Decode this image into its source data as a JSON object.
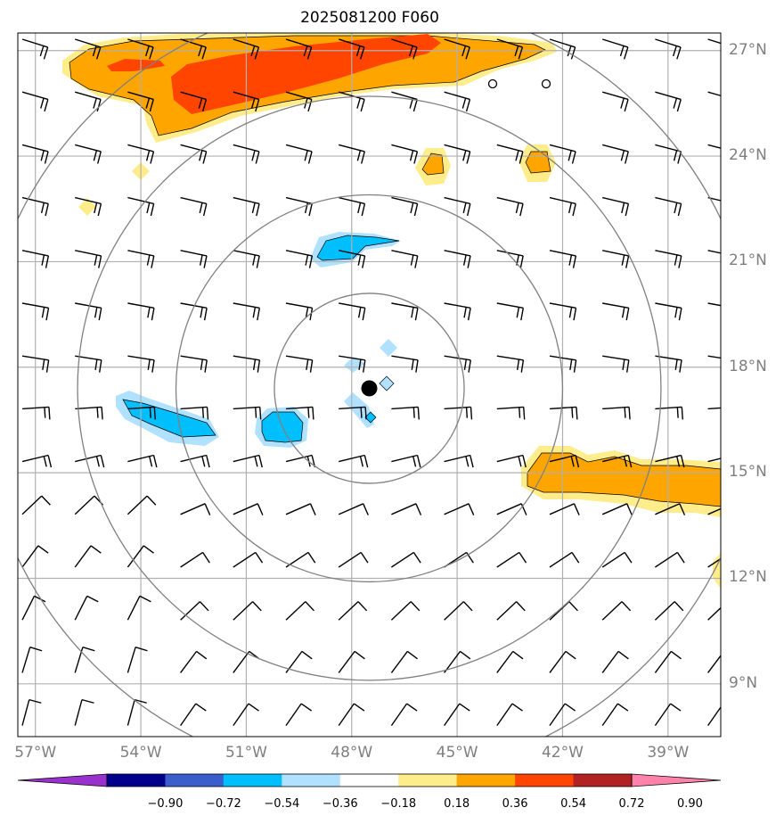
{
  "title": "2025081200 F060",
  "map": {
    "lon_range": [
      -57.5,
      -37.5
    ],
    "lat_range": [
      7.5,
      27.5
    ],
    "lon_ticks": [
      {
        "value": -57,
        "label": "57°W"
      },
      {
        "value": -54,
        "label": "54°W"
      },
      {
        "value": -51,
        "label": "51°W"
      },
      {
        "value": -48,
        "label": "48°W"
      },
      {
        "value": -45,
        "label": "45°W"
      },
      {
        "value": -42,
        "label": "42°W"
      },
      {
        "value": -39,
        "label": "39°W"
      }
    ],
    "lat_ticks": [
      {
        "value": 27,
        "label": "27°N"
      },
      {
        "value": 24,
        "label": "24°N"
      },
      {
        "value": 21,
        "label": "21°N"
      },
      {
        "value": 18,
        "label": "18°N"
      },
      {
        "value": 15,
        "label": "15°N"
      },
      {
        "value": 12,
        "label": "12°N"
      },
      {
        "value": 9,
        "label": "9°N"
      }
    ],
    "center": {
      "lon": -47.5,
      "lat": 17.4
    },
    "range_rings_deg": [
      2.7,
      5.5,
      8.3,
      11.1
    ],
    "grid_color": "#b0b0b0",
    "ring_color": "#808080"
  },
  "colorbar": {
    "levels": [
      "−0.90",
      "−0.72",
      "−0.54",
      "−0.36",
      "−0.18",
      "0.18",
      "0.36",
      "0.54",
      "0.72",
      "0.90"
    ],
    "colors": [
      "#9932cc",
      "#00008b",
      "#3a5fcd",
      "#00bfff",
      "#b0e2ff",
      "#ffffff",
      "#ffec8b",
      "#ffa500",
      "#ff4500",
      "#b22222",
      "#ff82ab"
    ]
  }
}
